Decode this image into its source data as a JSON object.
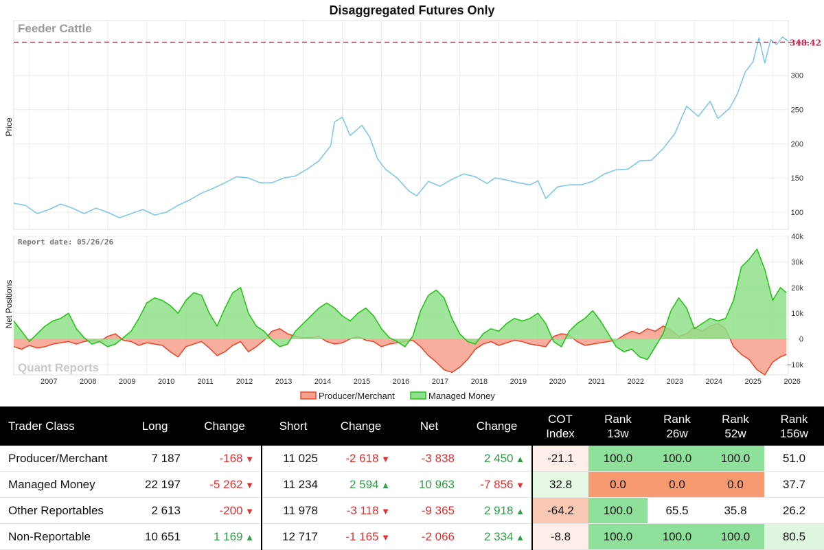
{
  "colors": {
    "price_line": "#7fc8ec",
    "producer_fill": "#f8a08c",
    "producer_line": "#e8482e",
    "managed_fill": "#8fe08a",
    "managed_line": "#28c21a",
    "price_reference": "#d11f4a"
  },
  "chart_data": [
    {
      "type": "line",
      "title": "Disaggregated Futures Only",
      "watermark": "Feeder Cattle",
      "ylabel": "Price",
      "ylim": [
        75,
        380
      ],
      "yticks": [
        100,
        150,
        200,
        250,
        300
      ],
      "reference_line": {
        "value": 348.42,
        "label": "348.42"
      },
      "x_labels": [
        "2007",
        "2008",
        "2009",
        "2010",
        "2011",
        "2012",
        "2013",
        "2014",
        "2015",
        "2016",
        "2017",
        "2018",
        "2019",
        "2020",
        "2021",
        "2022",
        "2023",
        "2024",
        "2025",
        "2026"
      ],
      "series": [
        {
          "x": [
            2006.6,
            2006.9,
            2007.2,
            2007.5,
            2007.8,
            2008.1,
            2008.4,
            2008.7,
            2009.0,
            2009.3,
            2009.6,
            2009.9,
            2010.2,
            2010.5,
            2010.8,
            2011.1,
            2011.4,
            2011.7,
            2012.0,
            2012.3,
            2012.6,
            2012.9,
            2013.2,
            2013.5,
            2013.8,
            2014.1,
            2014.4,
            2014.7,
            2014.8,
            2015.0,
            2015.2,
            2015.5,
            2015.7,
            2015.9,
            2016.1,
            2016.4,
            2016.7,
            2016.9,
            2017.2,
            2017.5,
            2017.8,
            2018.1,
            2018.4,
            2018.7,
            2018.9,
            2019.2,
            2019.5,
            2019.8,
            2020.0,
            2020.2,
            2020.5,
            2020.8,
            2021.1,
            2021.4,
            2021.7,
            2022.0,
            2022.3,
            2022.6,
            2022.9,
            2023.2,
            2023.5,
            2023.8,
            2024.1,
            2024.4,
            2024.6,
            2024.9,
            2025.1,
            2025.3,
            2025.5,
            2025.65,
            2025.8,
            2025.95,
            2026.1,
            2026.25,
            2026.4
          ],
          "values": [
            113,
            110,
            98,
            104,
            112,
            106,
            98,
            106,
            100,
            92,
            98,
            104,
            96,
            100,
            110,
            118,
            128,
            135,
            143,
            152,
            150,
            143,
            143,
            150,
            153,
            163,
            175,
            197,
            232,
            239,
            212,
            227,
            210,
            178,
            163,
            150,
            131,
            124,
            145,
            138,
            148,
            156,
            152,
            142,
            150,
            147,
            143,
            140,
            146,
            120,
            137,
            140,
            140,
            145,
            156,
            162,
            163,
            175,
            176,
            193,
            215,
            255,
            240,
            262,
            237,
            252,
            273,
            305,
            320,
            355,
            318,
            352,
            345,
            356,
            350
          ]
        }
      ]
    },
    {
      "type": "area",
      "ylabel": "Net Positions",
      "annotation": "Report date: 05/26/26",
      "watermark": "Quant Reports",
      "ylim": [
        -14000,
        40000
      ],
      "yticks": [
        -10000,
        0,
        10000,
        20000,
        30000,
        40000
      ],
      "ytick_labels": [
        "−10k",
        "0",
        "10k",
        "20k",
        "30k",
        "40k"
      ],
      "legend": [
        "Producer/Merchant",
        "Managed Money"
      ],
      "x": [
        2006.6,
        2006.8,
        2007.0,
        2007.2,
        2007.4,
        2007.6,
        2007.8,
        2008.0,
        2008.2,
        2008.4,
        2008.6,
        2008.8,
        2009.0,
        2009.2,
        2009.4,
        2009.6,
        2009.8,
        2010.0,
        2010.2,
        2010.4,
        2010.6,
        2010.8,
        2011.0,
        2011.2,
        2011.4,
        2011.6,
        2011.8,
        2012.0,
        2012.2,
        2012.4,
        2012.6,
        2012.8,
        2013.0,
        2013.2,
        2013.4,
        2013.6,
        2013.8,
        2014.0,
        2014.2,
        2014.4,
        2014.6,
        2014.8,
        2015.0,
        2015.2,
        2015.4,
        2015.6,
        2015.8,
        2016.0,
        2016.2,
        2016.4,
        2016.6,
        2016.8,
        2017.0,
        2017.2,
        2017.4,
        2017.6,
        2017.8,
        2018.0,
        2018.2,
        2018.4,
        2018.6,
        2018.8,
        2019.0,
        2019.2,
        2019.4,
        2019.6,
        2019.8,
        2020.0,
        2020.2,
        2020.4,
        2020.6,
        2020.8,
        2021.0,
        2021.2,
        2021.4,
        2021.6,
        2021.8,
        2022.0,
        2022.2,
        2022.4,
        2022.6,
        2022.8,
        2023.0,
        2023.2,
        2023.4,
        2023.6,
        2023.8,
        2024.0,
        2024.2,
        2024.4,
        2024.6,
        2024.8,
        2025.0,
        2025.2,
        2025.4,
        2025.6,
        2025.8,
        2026.0,
        2026.2,
        2026.35
      ],
      "series": [
        {
          "name": "Producer/Merchant",
          "values": [
            -3000,
            -4000,
            -2500,
            -3500,
            -3000,
            -2000,
            -1500,
            -1000,
            -2000,
            -1000,
            -500,
            -1000,
            1000,
            2000,
            -500,
            -1000,
            -2500,
            -1500,
            -2000,
            -2500,
            -5000,
            -7000,
            -3000,
            -2000,
            -1000,
            -3500,
            -6500,
            -5000,
            -2500,
            -1000,
            -5000,
            -3000,
            -500,
            3000,
            4000,
            2000,
            1000,
            500,
            500,
            1000,
            -1000,
            -2000,
            -1500,
            0,
            1000,
            -500,
            -1000,
            -3000,
            -2000,
            -1500,
            -1000,
            -500,
            -3000,
            -6500,
            -9000,
            -12000,
            -13000,
            -11000,
            -8000,
            -4000,
            -2000,
            -1000,
            -2500,
            -1500,
            -500,
            -1000,
            -2000,
            -2500,
            -3000,
            1000,
            2000,
            1500,
            -1000,
            -2500,
            -2000,
            -1500,
            -1000,
            -500,
            1500,
            3000,
            2000,
            4000,
            3000,
            5000,
            3500,
            1000,
            2000,
            4500,
            3000,
            5000,
            6000,
            4000,
            -3000,
            -6000,
            -8000,
            -12000,
            -14000,
            -9000,
            -7000,
            -6000
          ]
        },
        {
          "name": "Managed Money",
          "values": [
            7000,
            3000,
            -1000,
            2000,
            5000,
            7000,
            8000,
            10000,
            4000,
            500,
            -2000,
            -1000,
            -3000,
            -2000,
            500,
            3000,
            8000,
            14000,
            16000,
            15000,
            13000,
            10000,
            15000,
            18000,
            17000,
            10000,
            5000,
            12000,
            18000,
            20000,
            10000,
            5000,
            3000,
            -500,
            -3000,
            -2000,
            3000,
            6000,
            9000,
            12000,
            14000,
            12000,
            9000,
            7000,
            10000,
            12000,
            9000,
            4000,
            500,
            -1000,
            -3000,
            1000,
            11000,
            17000,
            19000,
            16000,
            8000,
            2000,
            -1000,
            -2000,
            2000,
            4000,
            3000,
            6000,
            8000,
            7000,
            8000,
            10000,
            6000,
            -1000,
            -3000,
            3000,
            6000,
            8000,
            11000,
            7000,
            2000,
            -3000,
            -5000,
            -4000,
            -7000,
            -8000,
            -3000,
            2000,
            11000,
            16000,
            12000,
            4000,
            6000,
            8000,
            7000,
            8000,
            15000,
            28000,
            31000,
            35000,
            27000,
            15000,
            20000,
            18000
          ]
        }
      ]
    }
  ],
  "table": {
    "headers": [
      {
        "l1": "Trader Class",
        "l2": ""
      },
      {
        "l1": "Long",
        "l2": ""
      },
      {
        "l1": "Change",
        "l2": ""
      },
      {
        "l1": "Short",
        "l2": ""
      },
      {
        "l1": "Change",
        "l2": ""
      },
      {
        "l1": "Net",
        "l2": ""
      },
      {
        "l1": "Change",
        "l2": ""
      },
      {
        "l1": "COT",
        "l2": "Index"
      },
      {
        "l1": "Rank",
        "l2": "13w"
      },
      {
        "l1": "Rank",
        "l2": "26w"
      },
      {
        "l1": "Rank",
        "l2": "52w"
      },
      {
        "l1": "Rank",
        "l2": "156w"
      }
    ],
    "rows": [
      {
        "name": "Producer/Merchant",
        "long": "7 187",
        "long_chg": "-168",
        "long_dir": "down",
        "short": "11 025",
        "short_chg": "-2 618",
        "short_dir": "down",
        "net": "-3 838",
        "net_chg": "2 450",
        "net_dir": "up",
        "cot": "-21.1",
        "r13": "100.0",
        "r26": "100.0",
        "r52": "100.0",
        "r156": "51.0"
      },
      {
        "name": "Managed Money",
        "long": "22 197",
        "long_chg": "-5 262",
        "long_dir": "down",
        "short": "11 234",
        "short_chg": "2 594",
        "short_dir": "up",
        "net": "10 963",
        "net_chg": "-7 856",
        "net_dir": "down",
        "cot": "32.8",
        "r13": "0.0",
        "r26": "0.0",
        "r52": "0.0",
        "r156": "37.7"
      },
      {
        "name": "Other Reportables",
        "long": "2 613",
        "long_chg": "-200",
        "long_dir": "down",
        "short": "11 978",
        "short_chg": "-3 118",
        "short_dir": "down",
        "net": "-9 365",
        "net_chg": "2 918",
        "net_dir": "up",
        "cot": "-64.2",
        "r13": "100.0",
        "r26": "65.5",
        "r52": "35.8",
        "r156": "26.2"
      },
      {
        "name": "Non-Reportable",
        "long": "10 651",
        "long_chg": "1 169",
        "long_dir": "up",
        "short": "12 717",
        "short_chg": "-1 165",
        "short_dir": "down",
        "net": "-2 066",
        "net_chg": "2 334",
        "net_dir": "up",
        "cot": "-8.8",
        "r13": "100.0",
        "r26": "100.0",
        "r52": "100.0",
        "r156": "80.5"
      }
    ]
  }
}
